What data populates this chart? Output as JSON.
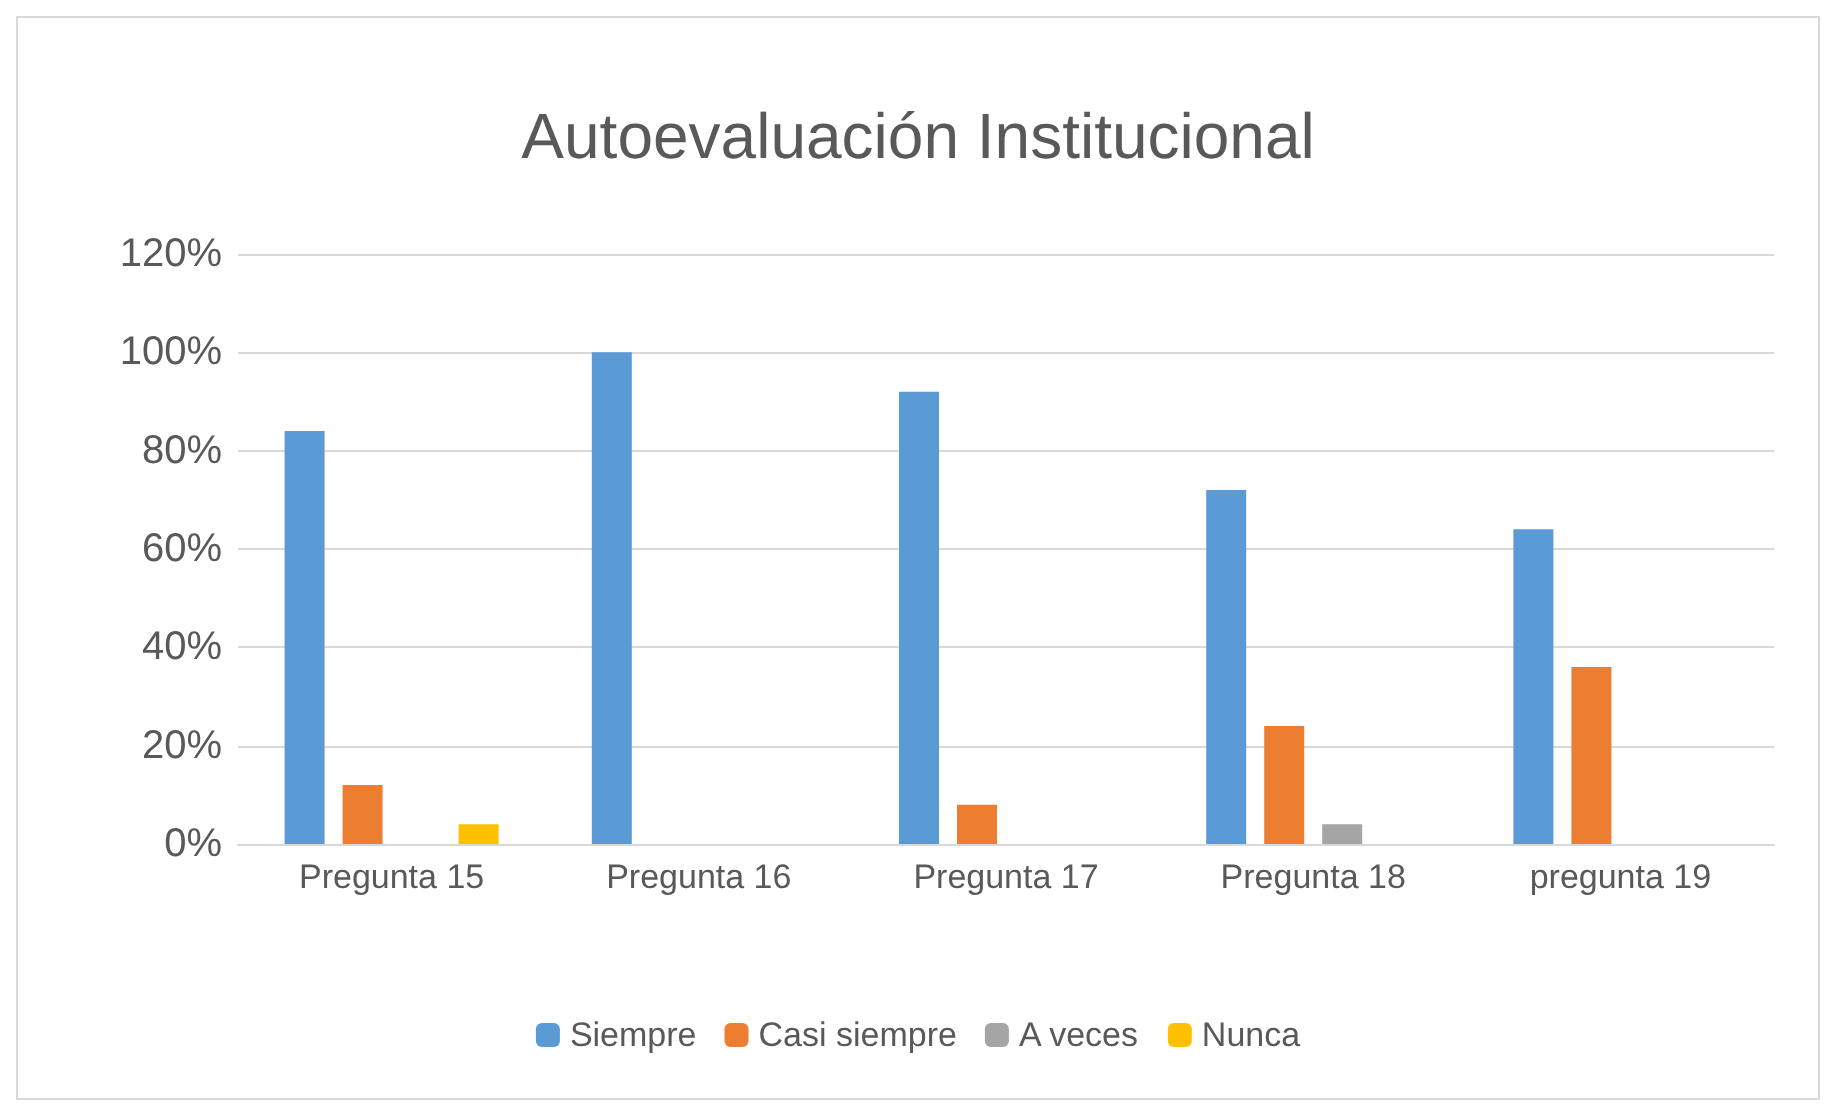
{
  "chart_data": {
    "type": "bar",
    "title": "Autoevaluación Institucional",
    "categories": [
      "Pregunta 15",
      "Pregunta 16",
      "Pregunta 17",
      "Pregunta 18",
      "pregunta 19"
    ],
    "series": [
      {
        "name": "Siempre",
        "color": "#5b9bd5",
        "values": [
          84,
          100,
          92,
          72,
          64
        ]
      },
      {
        "name": "Casi siempre",
        "color": "#ed7d31",
        "values": [
          12,
          0,
          8,
          24,
          36
        ]
      },
      {
        "name": "A veces",
        "color": "#a5a5a5",
        "values": [
          0,
          0,
          0,
          4,
          0
        ]
      },
      {
        "name": "Nunca",
        "color": "#ffc000",
        "values": [
          4,
          0,
          0,
          0,
          0
        ]
      }
    ],
    "ylim": [
      0,
      120
    ],
    "yticks": [
      {
        "value": 0,
        "label": "0%"
      },
      {
        "value": 20,
        "label": "20%"
      },
      {
        "value": 40,
        "label": "40%"
      },
      {
        "value": 60,
        "label": "60%"
      },
      {
        "value": 80,
        "label": "80%"
      },
      {
        "value": 100,
        "label": "100%"
      },
      {
        "value": 120,
        "label": "120%"
      }
    ],
    "grid": "y",
    "legend": "bottom"
  }
}
